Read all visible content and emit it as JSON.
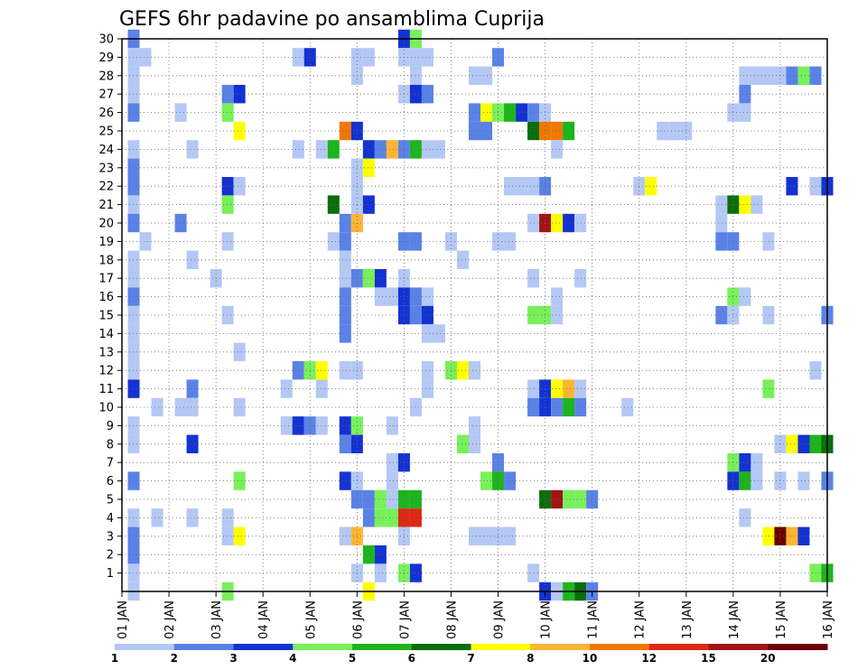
{
  "chart_data": {
    "type": "heatmap",
    "title": "GEFS 6hr padavine po ansamblima Cuprija",
    "y_ticks": [
      "1",
      "2",
      "3",
      "4",
      "5",
      "6",
      "7",
      "8",
      "9",
      "10",
      "11",
      "12",
      "13",
      "14",
      "15",
      "16",
      "17",
      "18",
      "19",
      "20",
      "21",
      "22",
      "23",
      "24",
      "25",
      "26",
      "27",
      "28",
      "29",
      "30"
    ],
    "x_ticks": [
      "01 JAN",
      "02 JAN",
      "03 JAN",
      "04 JAN",
      "05 JAN",
      "06 JAN",
      "07 JAN",
      "08 JAN",
      "09 JAN",
      "10 JAN",
      "11 JAN",
      "12 JAN",
      "13 JAN",
      "14 JAN",
      "15 JAN",
      "16 JAN"
    ],
    "x_range": [
      0,
      60
    ],
    "y_range": [
      0,
      30
    ],
    "grid": true,
    "colorbar": {
      "levels": [
        "1",
        "2",
        "3",
        "4",
        "5",
        "6",
        "7",
        "8",
        "10",
        "12",
        "15",
        "20"
      ],
      "colors": [
        "#b4c8f5",
        "#5a82e6",
        "#1432d2",
        "#78f05a",
        "#1eb41e",
        "#0a6e0a",
        "#ffff00",
        "#ffb432",
        "#f07800",
        "#dc2814",
        "#a01414",
        "#6e0000"
      ]
    },
    "cells": [
      [
        1,
        30,
        2
      ],
      [
        1,
        29,
        1
      ],
      [
        1,
        28,
        1
      ],
      [
        1,
        27,
        1
      ],
      [
        1,
        26,
        2
      ],
      [
        1,
        24,
        1
      ],
      [
        1,
        23,
        2
      ],
      [
        1,
        22,
        2
      ],
      [
        1,
        21,
        1
      ],
      [
        1,
        20,
        2
      ],
      [
        1,
        18,
        1
      ],
      [
        1,
        17,
        1
      ],
      [
        1,
        16,
        2
      ],
      [
        1,
        15,
        1
      ],
      [
        1,
        14,
        1
      ],
      [
        1,
        13,
        1
      ],
      [
        1,
        12,
        1
      ],
      [
        1,
        11,
        3
      ],
      [
        1,
        9,
        1
      ],
      [
        1,
        8,
        1
      ],
      [
        1,
        6,
        2
      ],
      [
        1,
        4,
        1
      ],
      [
        1,
        3,
        2
      ],
      [
        1,
        2,
        2
      ],
      [
        1,
        1,
        1
      ],
      [
        1,
        0,
        1
      ],
      [
        2,
        29,
        1
      ],
      [
        2,
        19,
        1
      ],
      [
        3,
        10,
        1
      ],
      [
        3,
        4,
        1
      ],
      [
        5,
        26,
        1
      ],
      [
        5,
        20,
        2
      ],
      [
        5,
        10,
        1
      ],
      [
        6,
        24,
        1
      ],
      [
        6,
        18,
        1
      ],
      [
        6,
        11,
        2
      ],
      [
        6,
        10,
        1
      ],
      [
        6,
        8,
        3
      ],
      [
        6,
        4,
        1
      ],
      [
        8,
        17,
        1
      ],
      [
        9,
        27,
        2
      ],
      [
        9,
        26,
        4
      ],
      [
        9,
        22,
        3
      ],
      [
        9,
        21,
        4
      ],
      [
        9,
        19,
        1
      ],
      [
        9,
        15,
        1
      ],
      [
        9,
        4,
        1
      ],
      [
        9,
        3,
        1
      ],
      [
        9,
        0,
        4
      ],
      [
        10,
        27,
        3
      ],
      [
        10,
        25,
        7
      ],
      [
        10,
        22,
        1
      ],
      [
        10,
        13,
        1
      ],
      [
        10,
        10,
        1
      ],
      [
        10,
        6,
        4
      ],
      [
        10,
        3,
        7
      ],
      [
        14,
        11,
        1
      ],
      [
        14,
        9,
        1
      ],
      [
        15,
        29,
        1
      ],
      [
        15,
        24,
        1
      ],
      [
        15,
        12,
        2
      ],
      [
        15,
        9,
        3
      ],
      [
        16,
        29,
        3
      ],
      [
        16,
        12,
        4
      ],
      [
        16,
        9,
        2
      ],
      [
        17,
        24,
        1
      ],
      [
        17,
        11,
        1
      ],
      [
        17,
        9,
        1
      ],
      [
        17,
        12,
        7
      ],
      [
        18,
        24,
        5
      ],
      [
        18,
        21,
        6
      ],
      [
        18,
        19,
        1
      ],
      [
        19,
        25,
        9
      ],
      [
        19,
        20,
        2
      ],
      [
        19,
        19,
        2
      ],
      [
        19,
        18,
        1
      ],
      [
        19,
        17,
        1
      ],
      [
        19,
        16,
        2
      ],
      [
        19,
        15,
        2
      ],
      [
        19,
        14,
        2
      ],
      [
        19,
        12,
        1
      ],
      [
        19,
        9,
        3
      ],
      [
        19,
        8,
        2
      ],
      [
        19,
        6,
        3
      ],
      [
        19,
        3,
        1
      ],
      [
        20,
        29,
        1
      ],
      [
        20,
        28,
        1
      ],
      [
        20,
        25,
        3
      ],
      [
        20,
        23,
        1
      ],
      [
        20,
        22,
        1
      ],
      [
        20,
        21,
        1
      ],
      [
        20,
        20,
        8
      ],
      [
        20,
        17,
        2
      ],
      [
        20,
        12,
        1
      ],
      [
        20,
        9,
        4
      ],
      [
        20,
        8,
        3
      ],
      [
        20,
        6,
        1
      ],
      [
        20,
        5,
        2
      ],
      [
        20,
        3,
        8
      ],
      [
        20,
        1,
        1
      ],
      [
        21,
        29,
        1
      ],
      [
        21,
        24,
        3
      ],
      [
        21,
        23,
        7
      ],
      [
        21,
        21,
        3
      ],
      [
        21,
        17,
        4
      ],
      [
        21,
        5,
        2
      ],
      [
        21,
        4,
        2
      ],
      [
        21,
        2,
        5
      ],
      [
        21,
        0,
        7
      ],
      [
        22,
        24,
        2
      ],
      [
        22,
        17,
        3
      ],
      [
        22,
        16,
        1
      ],
      [
        22,
        5,
        4
      ],
      [
        22,
        4,
        4
      ],
      [
        22,
        2,
        3
      ],
      [
        22,
        1,
        1
      ],
      [
        23,
        24,
        8
      ],
      [
        23,
        16,
        1
      ],
      [
        23,
        9,
        1
      ],
      [
        23,
        7,
        1
      ],
      [
        23,
        6,
        1
      ],
      [
        23,
        5,
        1
      ],
      [
        23,
        4,
        4
      ],
      [
        24,
        30,
        3
      ],
      [
        24,
        29,
        1
      ],
      [
        24,
        27,
        1
      ],
      [
        24,
        24,
        2
      ],
      [
        24,
        19,
        2
      ],
      [
        24,
        17,
        1
      ],
      [
        24,
        16,
        3
      ],
      [
        24,
        15,
        3
      ],
      [
        24,
        7,
        3
      ],
      [
        24,
        5,
        5
      ],
      [
        24,
        4,
        10
      ],
      [
        24,
        3,
        1
      ],
      [
        24,
        1,
        4
      ],
      [
        25,
        30,
        4
      ],
      [
        25,
        29,
        1
      ],
      [
        25,
        28,
        1
      ],
      [
        25,
        27,
        3
      ],
      [
        25,
        24,
        5
      ],
      [
        25,
        19,
        2
      ],
      [
        25,
        16,
        2
      ],
      [
        25,
        15,
        2
      ],
      [
        25,
        10,
        1
      ],
      [
        25,
        5,
        5
      ],
      [
        25,
        4,
        10
      ],
      [
        25,
        1,
        3
      ],
      [
        26,
        29,
        1
      ],
      [
        26,
        27,
        2
      ],
      [
        26,
        24,
        1
      ],
      [
        26,
        16,
        1
      ],
      [
        26,
        15,
        3
      ],
      [
        26,
        14,
        1
      ],
      [
        26,
        12,
        1
      ],
      [
        26,
        11,
        1
      ],
      [
        27,
        24,
        1
      ],
      [
        27,
        14,
        1
      ],
      [
        28,
        19,
        1
      ],
      [
        28,
        12,
        4
      ],
      [
        29,
        18,
        1
      ],
      [
        29,
        12,
        7
      ],
      [
        29,
        8,
        4
      ],
      [
        30,
        28,
        1
      ],
      [
        30,
        26,
        2
      ],
      [
        30,
        25,
        2
      ],
      [
        30,
        12,
        1
      ],
      [
        30,
        9,
        1
      ],
      [
        30,
        8,
        1
      ],
      [
        30,
        3,
        1
      ],
      [
        31,
        28,
        1
      ],
      [
        31,
        26,
        7
      ],
      [
        31,
        25,
        2
      ],
      [
        31,
        6,
        4
      ],
      [
        31,
        3,
        1
      ],
      [
        32,
        29,
        2
      ],
      [
        32,
        26,
        4
      ],
      [
        32,
        19,
        1
      ],
      [
        32,
        7,
        2
      ],
      [
        32,
        6,
        5
      ],
      [
        32,
        3,
        1
      ],
      [
        33,
        26,
        5
      ],
      [
        33,
        22,
        1
      ],
      [
        33,
        19,
        1
      ],
      [
        33,
        6,
        2
      ],
      [
        33,
        3,
        1
      ],
      [
        34,
        26,
        3
      ],
      [
        34,
        22,
        1
      ],
      [
        35,
        26,
        2
      ],
      [
        35,
        25,
        6
      ],
      [
        35,
        22,
        1
      ],
      [
        35,
        20,
        1
      ],
      [
        35,
        17,
        1
      ],
      [
        35,
        15,
        4
      ],
      [
        35,
        11,
        1
      ],
      [
        35,
        10,
        2
      ],
      [
        35,
        1,
        1
      ],
      [
        36,
        26,
        1
      ],
      [
        36,
        25,
        9
      ],
      [
        36,
        22,
        2
      ],
      [
        36,
        20,
        11
      ],
      [
        36,
        15,
        4
      ],
      [
        36,
        11,
        3
      ],
      [
        36,
        10,
        3
      ],
      [
        36,
        5,
        6
      ],
      [
        36,
        0,
        3
      ],
      [
        37,
        25,
        9
      ],
      [
        37,
        24,
        1
      ],
      [
        37,
        20,
        7
      ],
      [
        37,
        16,
        1
      ],
      [
        37,
        15,
        1
      ],
      [
        37,
        11,
        7
      ],
      [
        37,
        10,
        2
      ],
      [
        37,
        5,
        11
      ],
      [
        37,
        0,
        1
      ],
      [
        38,
        25,
        5
      ],
      [
        38,
        20,
        3
      ],
      [
        38,
        11,
        8
      ],
      [
        38,
        10,
        5
      ],
      [
        38,
        5,
        4
      ],
      [
        38,
        0,
        5
      ],
      [
        39,
        20,
        1
      ],
      [
        39,
        17,
        1
      ],
      [
        39,
        11,
        1
      ],
      [
        39,
        10,
        2
      ],
      [
        39,
        5,
        4
      ],
      [
        39,
        0,
        6
      ],
      [
        40,
        5,
        2
      ],
      [
        40,
        0,
        2
      ],
      [
        43,
        10,
        1
      ],
      [
        44,
        22,
        1
      ],
      [
        45,
        22,
        7
      ],
      [
        46,
        25,
        1
      ],
      [
        47,
        25,
        1
      ],
      [
        48,
        25,
        1
      ],
      [
        51,
        21,
        1
      ],
      [
        51,
        20,
        1
      ],
      [
        51,
        19,
        2
      ],
      [
        51,
        15,
        2
      ],
      [
        52,
        26,
        1
      ],
      [
        52,
        21,
        6
      ],
      [
        52,
        19,
        2
      ],
      [
        52,
        16,
        4
      ],
      [
        52,
        15,
        1
      ],
      [
        52,
        7,
        4
      ],
      [
        52,
        6,
        3
      ],
      [
        53,
        28,
        1
      ],
      [
        53,
        27,
        2
      ],
      [
        53,
        26,
        1
      ],
      [
        53,
        21,
        7
      ],
      [
        53,
        16,
        1
      ],
      [
        53,
        7,
        3
      ],
      [
        53,
        6,
        5
      ],
      [
        53,
        4,
        1
      ],
      [
        54,
        28,
        1
      ],
      [
        54,
        21,
        1
      ],
      [
        54,
        7,
        1
      ],
      [
        54,
        6,
        1
      ],
      [
        55,
        28,
        1
      ],
      [
        55,
        19,
        1
      ],
      [
        55,
        15,
        1
      ],
      [
        55,
        11,
        4
      ],
      [
        55,
        3,
        7
      ],
      [
        56,
        28,
        1
      ],
      [
        56,
        8,
        1
      ],
      [
        56,
        6,
        1
      ],
      [
        56,
        3,
        12
      ],
      [
        57,
        28,
        2
      ],
      [
        57,
        22,
        3
      ],
      [
        57,
        8,
        7
      ],
      [
        57,
        3,
        8
      ],
      [
        58,
        28,
        4
      ],
      [
        58,
        8,
        3
      ],
      [
        58,
        6,
        1
      ],
      [
        58,
        3,
        3
      ],
      [
        59,
        28,
        2
      ],
      [
        59,
        22,
        1
      ],
      [
        59,
        12,
        1
      ],
      [
        59,
        8,
        5
      ],
      [
        59,
        1,
        4
      ],
      [
        60,
        22,
        3
      ],
      [
        60,
        15,
        2
      ],
      [
        60,
        8,
        6
      ],
      [
        60,
        6,
        2
      ],
      [
        60,
        1,
        5
      ]
    ]
  }
}
